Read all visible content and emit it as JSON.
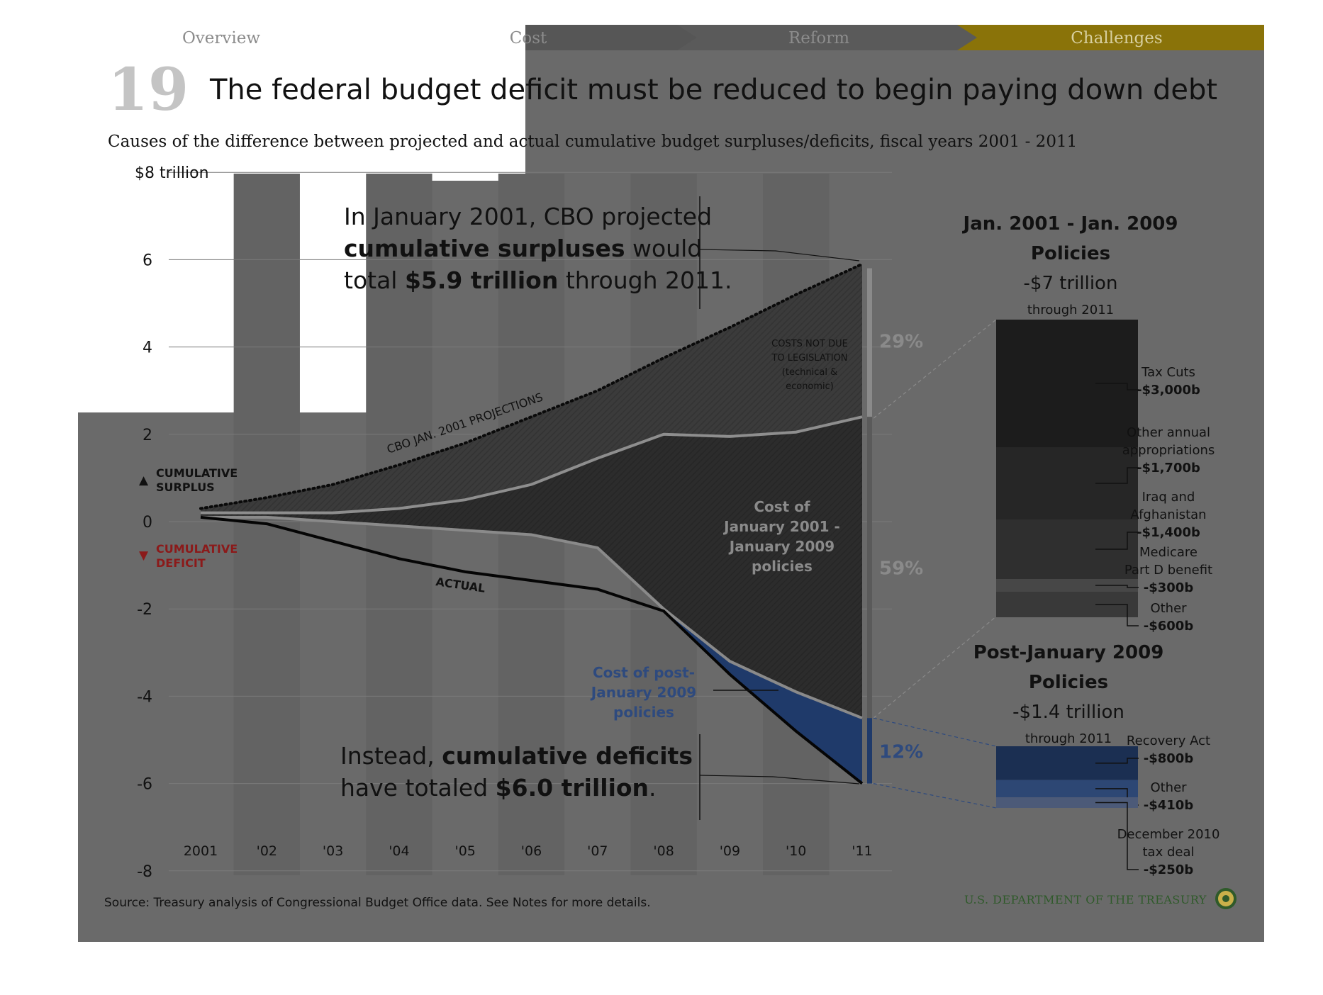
{
  "nav": {
    "items": [
      "Overview",
      "Cost",
      "Reform",
      "Challenges"
    ],
    "active_index": 3,
    "active_color": "#8a7309"
  },
  "slide_number": "19",
  "title": "The federal budget deficit must be reduced to begin paying down debt",
  "subtitle": "Causes of the difference between projected and actual cumulative budget surpluses/deficits, fiscal years 2001 - 2011",
  "legend": {
    "surplus_symbol": "▲",
    "surplus_line1": "CUMULATIVE",
    "surplus_line2": "SURPLUS",
    "deficit_symbol": "▼",
    "deficit_line1": "CUMULATIVE",
    "deficit_line2": "DEFICIT",
    "deficit_color": "#8b1a1a"
  },
  "annotation_top": {
    "line1": "In January 2001, CBO projected",
    "line2_bold": "cumulative surpluses",
    "line2_rest": " would",
    "line3_pre": "total ",
    "line3_bold": "$5.9 trillion",
    "line3_rest": " through 2011."
  },
  "annotation_bottom": {
    "line1_pre": "Instead, ",
    "line1_bold": "cumulative deficits",
    "line2_pre": "have totaled ",
    "line2_bold": "$6.0 trillion",
    "line2_rest": "."
  },
  "curve_labels": {
    "projection": "CBO JAN. 2001 PROJECTIONS",
    "actual": "ACTUAL"
  },
  "region_labels": {
    "not_due": [
      "COSTS NOT DUE",
      "TO LEGISLATION",
      "(technical &",
      "economic)"
    ],
    "jan_policies": [
      "Cost of",
      "January 2001 -",
      "January 2009",
      "policies"
    ],
    "post_policies": [
      "Cost of post-",
      "January 2009",
      "policies"
    ]
  },
  "percent_labels": {
    "not_due": "29%",
    "jan_policies": "59%",
    "post_policies": "12%"
  },
  "colors": {
    "frame": "#6a6a6a",
    "region_dark": "#3a3a3a",
    "post_region": "#1f3a6a",
    "pct_gray": "#8a8a8a",
    "pct_blue": "#2e4a7e"
  },
  "chart_data": {
    "type": "area",
    "ylabel_top": "$8 trillion",
    "yticks": [
      "$8 trillion",
      "6",
      "4",
      "2",
      "0",
      "-2",
      "-4",
      "-6",
      "-8"
    ],
    "ylim": [
      -8,
      8
    ],
    "x": [
      "2001",
      "'02",
      "'03",
      "'04",
      "'05",
      "'06",
      "'07",
      "'08",
      "'09",
      "'10",
      "'11"
    ],
    "series": [
      {
        "name": "CBO JAN. 2001 PROJECTIONS",
        "values": [
          0.3,
          0.55,
          0.85,
          1.3,
          1.8,
          2.4,
          3.0,
          3.75,
          4.45,
          5.2,
          5.9
        ]
      },
      {
        "values": [
          0.2,
          0.2,
          0.2,
          0.3,
          0.5,
          0.85,
          1.45,
          2.0,
          1.95,
          2.05,
          2.4
        ]
      },
      {
        "values": [
          0.1,
          0.1,
          0.0,
          -0.1,
          -0.2,
          -0.3,
          -0.6,
          -2.0,
          -3.2,
          -3.9,
          -4.5
        ]
      },
      {
        "name": "ACTUAL",
        "values": [
          0.1,
          -0.05,
          -0.45,
          -0.85,
          -1.15,
          -1.35,
          -1.55,
          -2.05,
          -3.5,
          -4.8,
          -6.0
        ]
      }
    ],
    "grid": true
  },
  "panel_jan": {
    "title1": "Jan. 2001 - Jan. 2009",
    "title2": "Policies",
    "total": "-$7 trillion",
    "through": "through 2011",
    "segments": [
      {
        "label": [
          "Tax Cuts"
        ],
        "value": "-$3,000b",
        "amount": 3000,
        "color": "#1c1c1c"
      },
      {
        "label": [
          "Other annual",
          "appropriations"
        ],
        "value": "-$1,700b",
        "amount": 1700,
        "color": "#262626"
      },
      {
        "label": [
          "Iraq and",
          "Afghanistan"
        ],
        "value": "-$1,400b",
        "amount": 1400,
        "color": "#2f2f2f"
      },
      {
        "label": [
          "Medicare",
          "Part D benefit"
        ],
        "value": "-$300b",
        "amount": 300,
        "color": "#474747"
      },
      {
        "label": [
          "Other"
        ],
        "value": "-$600b",
        "amount": 600,
        "color": "#393939"
      }
    ]
  },
  "panel_post": {
    "title1": "Post-January 2009",
    "title2": "Policies",
    "total": "-$1.4 trillion",
    "through": "through 2011",
    "segments": [
      {
        "label": [
          "Recovery Act"
        ],
        "value": "-$800b",
        "amount": 800,
        "color": "#1b2f52"
      },
      {
        "label": [
          "Other"
        ],
        "value": "-$410b",
        "amount": 410,
        "color": "#2d4774"
      },
      {
        "label": [
          "December 2010",
          "tax deal"
        ],
        "value": "-$250b",
        "amount": 250,
        "color": "#4c5a78"
      }
    ]
  },
  "source": "Source: Treasury analysis of Congressional Budget Office data. See Notes for more details.",
  "agency": "U.S. DEPARTMENT OF THE TREASURY"
}
